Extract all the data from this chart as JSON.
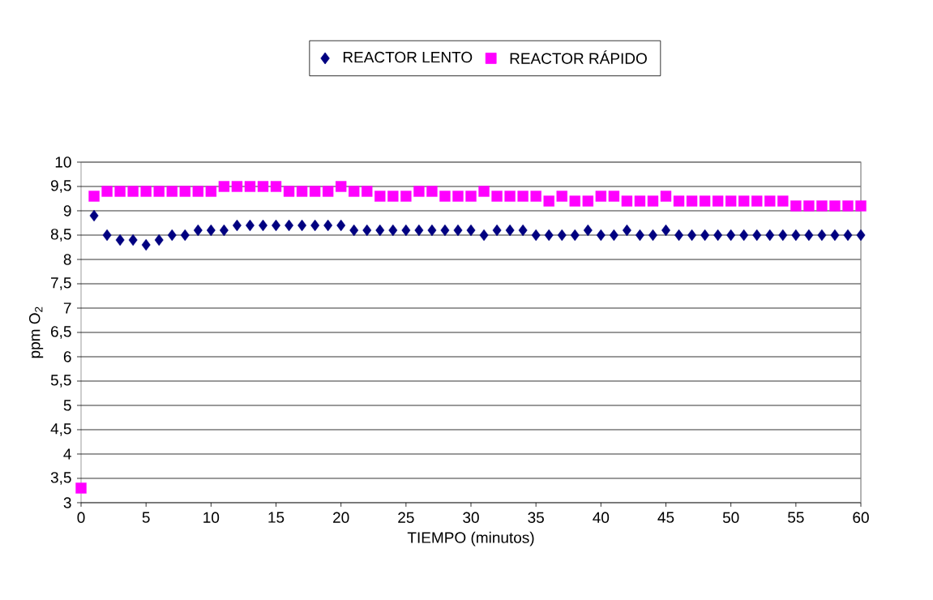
{
  "chart_data": {
    "type": "scatter",
    "xlabel": "TIEMPO (minutos)",
    "ylabel": "ppm O$_{2}$",
    "xlim": [
      0,
      60
    ],
    "ylim": [
      3,
      10
    ],
    "xticks": [
      0,
      5,
      10,
      15,
      20,
      25,
      30,
      35,
      40,
      45,
      50,
      55,
      60
    ],
    "yticks": [
      3,
      {
        "value": 3.5,
        "label": "3,5"
      },
      4,
      {
        "value": 4.5,
        "label": "4,5"
      },
      5,
      {
        "value": 5.5,
        "label": "5,5"
      },
      6,
      {
        "value": 6.5,
        "label": "6,5"
      },
      7,
      {
        "value": 7.5,
        "label": "7,5"
      },
      8,
      {
        "value": 8.5,
        "label": "8,5"
      },
      9,
      {
        "value": 9.5,
        "label": "9,5"
      },
      10
    ],
    "grid": "y",
    "legend": "top",
    "series": [
      {
        "name": "REACTOR LENTO",
        "color": "#000080",
        "marker": "diamond",
        "x": [
          1,
          2,
          3,
          4,
          5,
          6,
          7,
          8,
          9,
          10,
          11,
          12,
          13,
          14,
          15,
          16,
          17,
          18,
          19,
          20,
          21,
          22,
          23,
          24,
          25,
          26,
          27,
          28,
          29,
          30,
          31,
          32,
          33,
          34,
          35,
          36,
          37,
          38,
          39,
          40,
          41,
          42,
          43,
          44,
          45,
          46,
          47,
          48,
          49,
          50,
          51,
          52,
          53,
          54,
          55,
          56,
          57,
          58,
          59,
          60
        ],
        "values": [
          8.9,
          8.5,
          8.4,
          8.4,
          8.3,
          8.4,
          8.5,
          8.5,
          8.6,
          8.6,
          8.6,
          8.7,
          8.7,
          8.7,
          8.7,
          8.7,
          8.7,
          8.7,
          8.7,
          8.7,
          8.6,
          8.6,
          8.6,
          8.6,
          8.6,
          8.6,
          8.6,
          8.6,
          8.6,
          8.6,
          8.5,
          8.6,
          8.6,
          8.6,
          8.5,
          8.5,
          8.5,
          8.5,
          8.6,
          8.5,
          8.5,
          8.6,
          8.5,
          8.5,
          8.6,
          8.5,
          8.5,
          8.5,
          8.5,
          8.5,
          8.5,
          8.5,
          8.5,
          8.5,
          8.5,
          8.5,
          8.5,
          8.5,
          8.5,
          8.5
        ]
      },
      {
        "name": "REACTOR RÁPIDO",
        "color": "#ff00ff",
        "marker": "square",
        "x": [
          0,
          1,
          2,
          3,
          4,
          5,
          6,
          7,
          8,
          9,
          10,
          11,
          12,
          13,
          14,
          15,
          16,
          17,
          18,
          19,
          20,
          21,
          22,
          23,
          24,
          25,
          26,
          27,
          28,
          29,
          30,
          31,
          32,
          33,
          34,
          35,
          36,
          37,
          38,
          39,
          40,
          41,
          42,
          43,
          44,
          45,
          46,
          47,
          48,
          49,
          50,
          51,
          52,
          53,
          54,
          55,
          56,
          57,
          58,
          59,
          60
        ],
        "values": [
          3.3,
          9.3,
          9.4,
          9.4,
          9.4,
          9.4,
          9.4,
          9.4,
          9.4,
          9.4,
          9.4,
          9.5,
          9.5,
          9.5,
          9.5,
          9.5,
          9.4,
          9.4,
          9.4,
          9.4,
          9.5,
          9.4,
          9.4,
          9.3,
          9.3,
          9.3,
          9.4,
          9.4,
          9.3,
          9.3,
          9.3,
          9.4,
          9.3,
          9.3,
          9.3,
          9.3,
          9.2,
          9.3,
          9.2,
          9.2,
          9.3,
          9.3,
          9.2,
          9.2,
          9.2,
          9.3,
          9.2,
          9.2,
          9.2,
          9.2,
          9.2,
          9.2,
          9.2,
          9.2,
          9.2,
          9.1,
          9.1,
          9.1,
          9.1,
          9.1,
          9.1
        ]
      }
    ]
  }
}
